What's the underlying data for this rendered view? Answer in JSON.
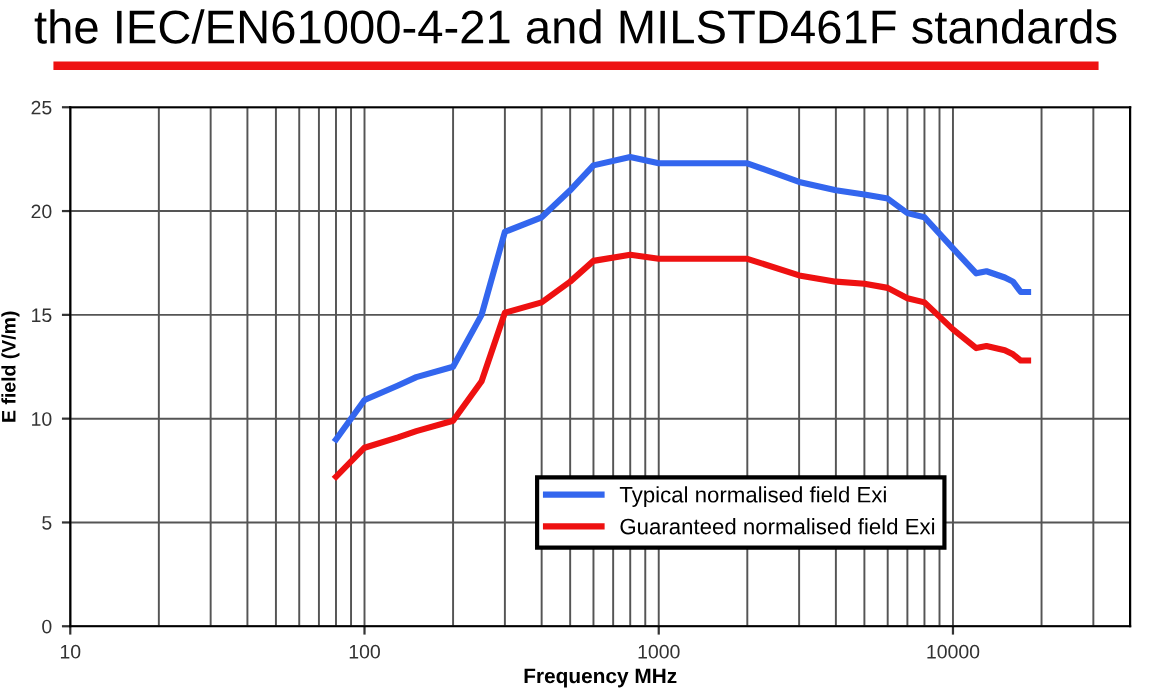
{
  "chart_data": {
    "type": "line",
    "title": "the IEC/EN61000-4-21 and MILSTD461F standards",
    "xlabel": "Frequency MHz",
    "ylabel": "E field (V/m)",
    "log": "x",
    "xlim": [
      10,
      40000
    ],
    "xticks": [
      10,
      100,
      1000,
      10000
    ],
    "ylim": [
      0,
      25
    ],
    "yticks": [
      0,
      5,
      10,
      15,
      20,
      25
    ],
    "grid": true,
    "legend": "bottom right",
    "line_style": "solid",
    "marker": "none",
    "x": [
      80,
      100,
      130,
      150,
      200,
      250,
      300,
      400,
      500,
      600,
      800,
      1000,
      2000,
      3000,
      4000,
      5000,
      6000,
      7000,
      8000,
      10000,
      12000,
      13000,
      15000,
      16000,
      17000,
      18000
    ],
    "series": [
      {
        "name": "Typical normalised field Exi",
        "color": "#3366ee",
        "values": [
          9.0,
          10.9,
          11.6,
          12.0,
          12.5,
          15.0,
          19.0,
          19.7,
          21.0,
          22.2,
          22.6,
          22.3,
          22.3,
          21.4,
          21.0,
          20.8,
          20.6,
          19.9,
          19.7,
          18.2,
          17.0,
          17.1,
          16.8,
          16.6,
          16.1,
          16.1
        ]
      },
      {
        "name": "Guaranteed normalised field Exi",
        "color": "#ee1111",
        "values": [
          7.2,
          8.6,
          9.1,
          9.4,
          9.9,
          11.8,
          15.1,
          15.6,
          16.6,
          17.6,
          17.9,
          17.7,
          17.7,
          16.9,
          16.6,
          16.5,
          16.3,
          15.8,
          15.6,
          14.3,
          13.4,
          13.5,
          13.3,
          13.1,
          12.8,
          12.8
        ]
      }
    ]
  }
}
